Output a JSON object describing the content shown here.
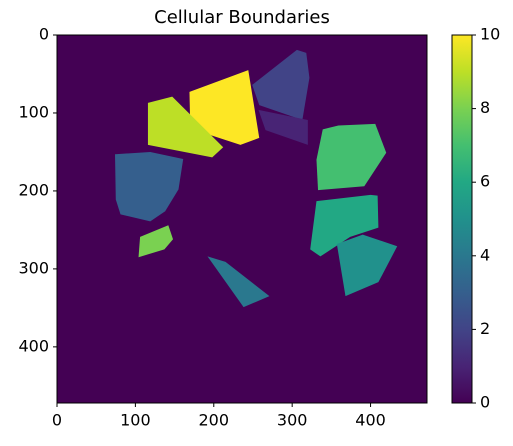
{
  "chart_data": {
    "type": "image",
    "title": "Cellular Boundaries",
    "colormap": "viridis",
    "clim": [
      0,
      10
    ],
    "cticks": [
      0,
      2,
      4,
      6,
      8,
      10
    ],
    "xlim": [
      0,
      472
    ],
    "ylim": [
      472,
      0
    ],
    "xticks": [
      0,
      100,
      200,
      300,
      400
    ],
    "yticks": [
      0,
      100,
      200,
      300,
      400
    ],
    "background": 0,
    "polygons": [
      {
        "value": 10,
        "points": [
          [
            169,
            73
          ],
          [
            244,
            45
          ],
          [
            258,
            132
          ],
          [
            234,
            141
          ],
          [
            170,
            120
          ]
        ]
      },
      {
        "value": 9,
        "points": [
          [
            116,
            87
          ],
          [
            147,
            79
          ],
          [
            212,
            144
          ],
          [
            198,
            157
          ],
          [
            116,
            141
          ]
        ]
      },
      {
        "value": 8,
        "points": [
          [
            106,
            259
          ],
          [
            142,
            244
          ],
          [
            148,
            262
          ],
          [
            137,
            275
          ],
          [
            104,
            285
          ]
        ]
      },
      {
        "value": 7,
        "points": [
          [
            339,
            121
          ],
          [
            359,
            116
          ],
          [
            406,
            114
          ],
          [
            420,
            151
          ],
          [
            392,
            194
          ],
          [
            333,
            199
          ],
          [
            331,
            160
          ]
        ]
      },
      {
        "value": 6,
        "points": [
          [
            331,
            213
          ],
          [
            400,
            205
          ],
          [
            409,
            206
          ],
          [
            410,
            247
          ],
          [
            374,
            259
          ],
          [
            336,
            284
          ],
          [
            323,
            275
          ]
        ]
      },
      {
        "value": 5,
        "points": [
          [
            357,
            268
          ],
          [
            390,
            256
          ],
          [
            434,
            271
          ],
          [
            410,
            317
          ],
          [
            368,
            335
          ]
        ]
      },
      {
        "value": 4,
        "points": [
          [
            192,
            284
          ],
          [
            215,
            291
          ],
          [
            271,
            335
          ],
          [
            238,
            349
          ]
        ]
      },
      {
        "value": 3,
        "points": [
          [
            74,
            153
          ],
          [
            119,
            150
          ],
          [
            161,
            159
          ],
          [
            155,
            198
          ],
          [
            138,
            226
          ],
          [
            119,
            239
          ],
          [
            81,
            230
          ],
          [
            75,
            211
          ]
        ]
      },
      {
        "value": 2,
        "points": [
          [
            249,
            64
          ],
          [
            306,
            19
          ],
          [
            318,
            23
          ],
          [
            322,
            55
          ],
          [
            313,
            109
          ],
          [
            258,
            90
          ]
        ]
      },
      {
        "value": 1,
        "points": [
          [
            257,
            96
          ],
          [
            320,
            109
          ],
          [
            320,
            141
          ],
          [
            266,
            122
          ]
        ]
      }
    ]
  }
}
